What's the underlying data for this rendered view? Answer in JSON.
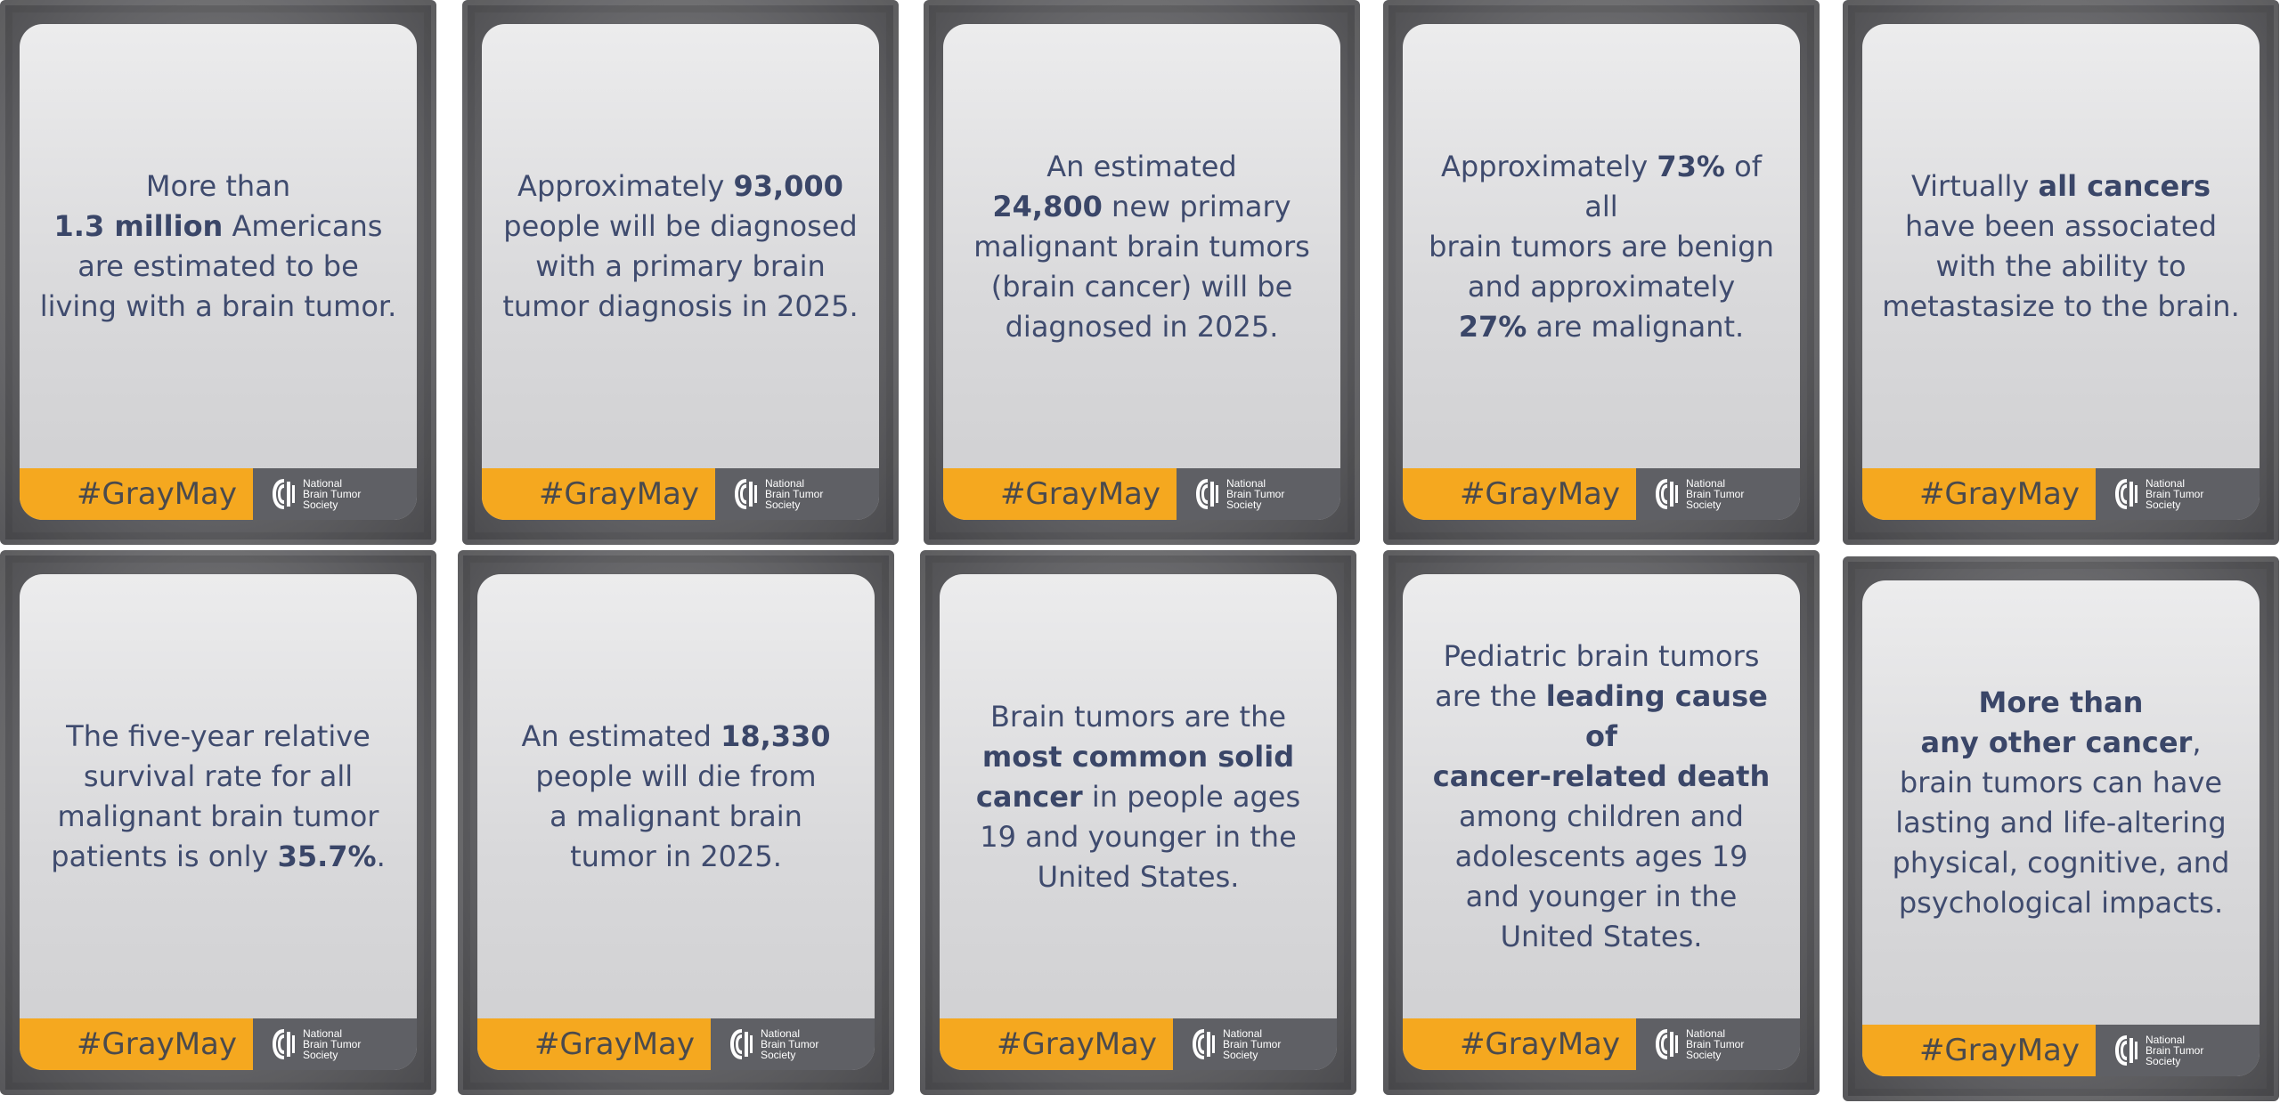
{
  "hashtag": "#GrayMay",
  "brand": {
    "line1": "National",
    "line2": "Brain Tumor",
    "line3": "Society"
  },
  "cards": [
    {
      "segments": [
        {
          "t": "More than",
          "b": false
        },
        {
          "br": true
        },
        {
          "t": "1.3 million",
          "b": true
        },
        {
          "t": " Americans",
          "b": false
        },
        {
          "br": true
        },
        {
          "t": "are estimated to be",
          "b": false
        },
        {
          "br": true
        },
        {
          "t": "living with a brain tumor.",
          "b": false
        }
      ]
    },
    {
      "segments": [
        {
          "t": "Approximately ",
          "b": false
        },
        {
          "t": "93,000",
          "b": true
        },
        {
          "br": true
        },
        {
          "t": "people will be diagnosed",
          "b": false
        },
        {
          "br": true
        },
        {
          "t": "with a primary brain",
          "b": false
        },
        {
          "br": true
        },
        {
          "t": "tumor diagnosis in 2025.",
          "b": false
        }
      ]
    },
    {
      "segments": [
        {
          "t": "An estimated",
          "b": false
        },
        {
          "br": true
        },
        {
          "t": "24,800",
          "b": true
        },
        {
          "t": " new primary",
          "b": false
        },
        {
          "br": true
        },
        {
          "t": "malignant brain tumors",
          "b": false
        },
        {
          "br": true
        },
        {
          "t": "(brain cancer) will be",
          "b": false
        },
        {
          "br": true
        },
        {
          "t": "diagnosed in 2025.",
          "b": false
        }
      ]
    },
    {
      "segments": [
        {
          "t": "Approximately ",
          "b": false
        },
        {
          "t": "73%",
          "b": true
        },
        {
          "t": " of all",
          "b": false
        },
        {
          "br": true
        },
        {
          "t": "brain tumors are benign",
          "b": false
        },
        {
          "br": true
        },
        {
          "t": "and approximately",
          "b": false
        },
        {
          "br": true
        },
        {
          "t": "27%",
          "b": true
        },
        {
          "t": " are malignant.",
          "b": false
        }
      ]
    },
    {
      "segments": [
        {
          "t": "Virtually ",
          "b": false
        },
        {
          "t": "all cancers",
          "b": true
        },
        {
          "br": true
        },
        {
          "t": "have been associated",
          "b": false
        },
        {
          "br": true
        },
        {
          "t": "with the ability to",
          "b": false
        },
        {
          "br": true
        },
        {
          "t": "metastasize to the brain.",
          "b": false
        }
      ]
    },
    {
      "segments": [
        {
          "t": "The five-year relative",
          "b": false
        },
        {
          "br": true
        },
        {
          "t": "survival rate for all",
          "b": false
        },
        {
          "br": true
        },
        {
          "t": "malignant brain tumor",
          "b": false
        },
        {
          "br": true
        },
        {
          "t": "patients is only ",
          "b": false
        },
        {
          "t": "35.7%",
          "b": true
        },
        {
          "t": ".",
          "b": false
        }
      ]
    },
    {
      "segments": [
        {
          "t": "An estimated ",
          "b": false
        },
        {
          "t": "18,330",
          "b": true
        },
        {
          "br": true
        },
        {
          "t": "people will die from",
          "b": false
        },
        {
          "br": true
        },
        {
          "t": "a malignant brain",
          "b": false
        },
        {
          "br": true
        },
        {
          "t": "tumor in 2025.",
          "b": false
        }
      ]
    },
    {
      "segments": [
        {
          "t": "Brain tumors are the",
          "b": false
        },
        {
          "br": true
        },
        {
          "t": "most common solid",
          "b": true
        },
        {
          "br": true
        },
        {
          "t": "cancer",
          "b": true
        },
        {
          "t": " in people ages",
          "b": false
        },
        {
          "br": true
        },
        {
          "t": "19 and younger in the",
          "b": false
        },
        {
          "br": true
        },
        {
          "t": "United States.",
          "b": false
        }
      ]
    },
    {
      "segments": [
        {
          "t": "Pediatric brain tumors",
          "b": false
        },
        {
          "br": true
        },
        {
          "t": "are the ",
          "b": false
        },
        {
          "t": "leading cause of",
          "b": true
        },
        {
          "br": true
        },
        {
          "t": "cancer-related death",
          "b": true
        },
        {
          "br": true
        },
        {
          "t": "among children and",
          "b": false
        },
        {
          "br": true
        },
        {
          "t": "adolescents ages 19",
          "b": false
        },
        {
          "br": true
        },
        {
          "t": "and younger in the",
          "b": false
        },
        {
          "br": true
        },
        {
          "t": "United States.",
          "b": false
        }
      ]
    },
    {
      "segments": [
        {
          "t": "More than",
          "b": true
        },
        {
          "br": true
        },
        {
          "t": "any other cancer",
          "b": true
        },
        {
          "t": ",",
          "b": false
        },
        {
          "br": true
        },
        {
          "t": "brain tumors can have",
          "b": false
        },
        {
          "br": true
        },
        {
          "t": "lasting and life-altering",
          "b": false
        },
        {
          "br": true
        },
        {
          "t": "physical, cognitive, and",
          "b": false
        },
        {
          "br": true
        },
        {
          "t": "psychological impacts.",
          "b": false
        }
      ]
    }
  ]
}
